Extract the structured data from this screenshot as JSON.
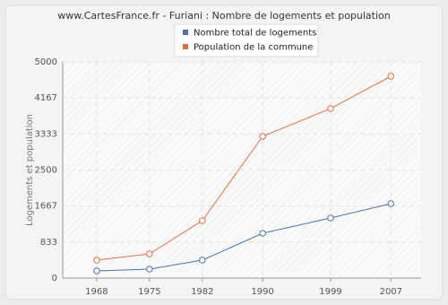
{
  "chart_data": {
    "type": "line",
    "title": "www.CartesFrance.fr - Furiani : Nombre de logements et population",
    "ylabel": "Logements et population",
    "x": [
      1968,
      1975,
      1982,
      1990,
      1999,
      2007
    ],
    "series": [
      {
        "name": "Nombre total de logements",
        "color": "#4a74a8",
        "values": [
          166,
          207,
          415,
          1037,
          1390,
          1722
        ]
      },
      {
        "name": "Population de la commune",
        "color": "#e07040",
        "values": [
          415,
          560,
          1328,
          3278,
          3921,
          4668
        ]
      }
    ],
    "xlim": [
      1963.5,
      2011
    ],
    "xticks": [
      1968,
      1975,
      1982,
      1990,
      1999,
      2007
    ],
    "ylim": [
      0,
      5000
    ],
    "yticks": [
      0,
      833,
      1667,
      2500,
      3333,
      4167,
      5000
    ],
    "grid": true
  }
}
